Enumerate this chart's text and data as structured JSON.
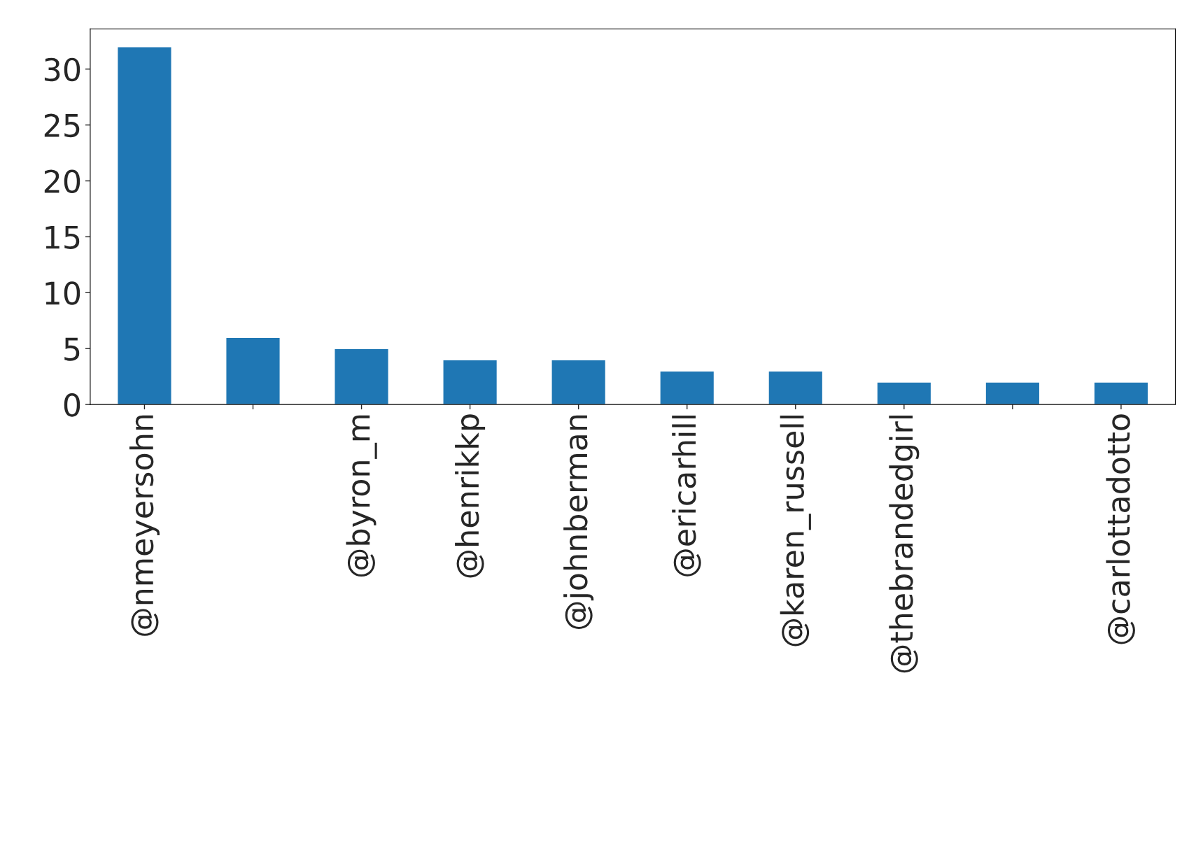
{
  "chart_data": {
    "type": "bar",
    "categories": [
      "@nmeyersohn",
      null,
      "@byron_m",
      "@henrikkp",
      "@johnberman",
      "@ericarhill",
      "@karen_russell",
      "@thebrandedgirl",
      null,
      "@carlottadotto"
    ],
    "values": [
      32,
      6,
      5,
      4,
      4,
      3,
      3,
      2,
      2,
      2
    ],
    "color": "#1f77b4",
    "ylim": [
      0,
      33.6
    ],
    "yticks": [
      0,
      5,
      10,
      15,
      20,
      25,
      30
    ],
    "grid": false,
    "legend": false
  }
}
